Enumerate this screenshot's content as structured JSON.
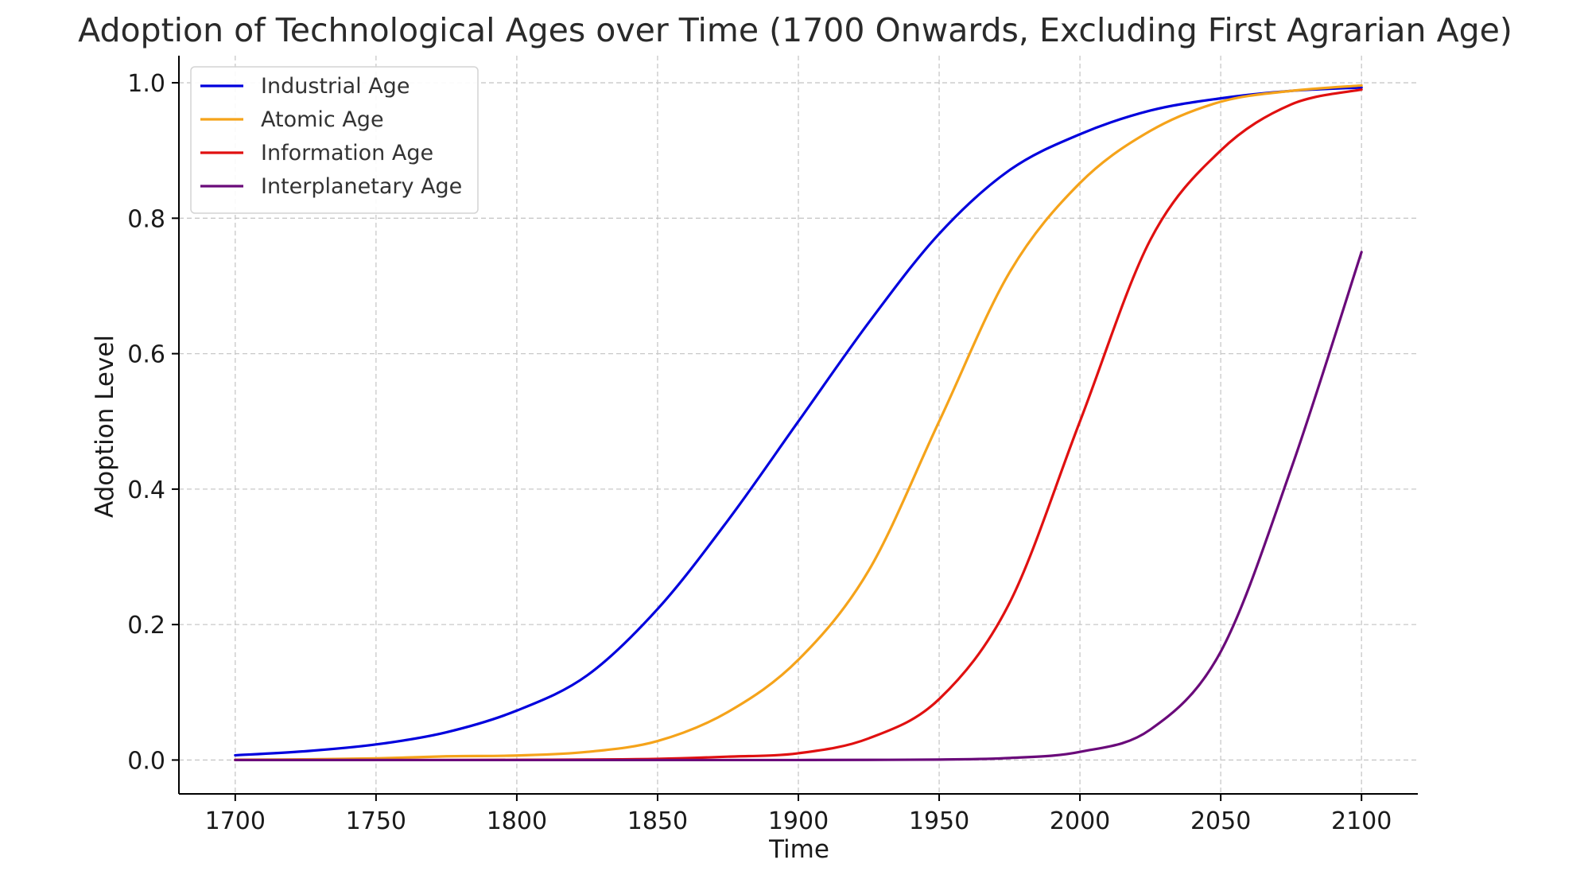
{
  "chart_data": {
    "type": "line",
    "title": "Adoption of Technological Ages over Time (1700 Onwards, Excluding First Agrarian Age)",
    "xlabel": "Time",
    "ylabel": "Adoption Level",
    "xlim": [
      1680,
      2120
    ],
    "ylim": [
      -0.05,
      1.04
    ],
    "xticks": [
      1700,
      1750,
      1800,
      1850,
      1900,
      1950,
      2000,
      2050,
      2100
    ],
    "yticks": [
      0.0,
      0.2,
      0.4,
      0.6,
      0.8,
      1.0
    ],
    "ytick_labels": [
      "0.0",
      "0.2",
      "0.4",
      "0.6",
      "0.8",
      "1.0"
    ],
    "grid": true,
    "legend_position": "top-left",
    "x": [
      1700,
      1725,
      1750,
      1775,
      1800,
      1825,
      1850,
      1875,
      1900,
      1925,
      1950,
      1975,
      2000,
      2025,
      2050,
      2075,
      2100
    ],
    "series": [
      {
        "name": "Industrial Age",
        "color": "#0000dd",
        "values": [
          0.007,
          0.013,
          0.023,
          0.041,
          0.073,
          0.125,
          0.223,
          0.354,
          0.5,
          0.646,
          0.777,
          0.871,
          0.924,
          0.959,
          0.977,
          0.988,
          0.993
        ]
      },
      {
        "name": "Atomic Age",
        "color": "#f5a31a",
        "values": [
          0.0004,
          0.001,
          0.0024,
          0.0055,
          0.0067,
          0.012,
          0.028,
          0.071,
          0.148,
          0.28,
          0.5,
          0.72,
          0.852,
          0.929,
          0.972,
          0.988,
          0.996
        ]
      },
      {
        "name": "Information Age",
        "color": "#e01010",
        "values": [
          0.0,
          0.0,
          0.0,
          0.0,
          0.0002,
          0.0007,
          0.0017,
          0.005,
          0.01,
          0.032,
          0.09,
          0.232,
          0.5,
          0.768,
          0.9,
          0.968,
          0.99
        ]
      },
      {
        "name": "Interplanetary Age",
        "color": "#6a0a7a",
        "values": [
          0.0,
          0.0,
          0.0,
          0.0,
          0.0,
          0.0,
          0.0,
          0.0,
          0.0,
          0.0002,
          0.0007,
          0.003,
          0.012,
          0.045,
          0.16,
          0.43,
          0.75
        ]
      }
    ]
  }
}
